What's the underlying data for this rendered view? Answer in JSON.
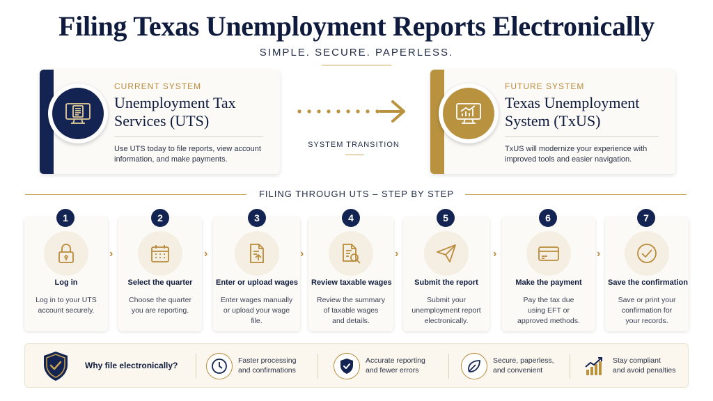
{
  "header": {
    "title": "Filing Texas Unemployment Reports Electronically",
    "subtitle": "SIMPLE. SECURE. PAPERLESS."
  },
  "current_system": {
    "eyebrow": "CURRENT SYSTEM",
    "name_line1": "Unemployment Tax",
    "name_line2": "Services (UTS)",
    "desc_line1": "Use UTS today to file reports, view account",
    "desc_line2": "information, and make payments.",
    "icon": "monitor-document-icon"
  },
  "transition": {
    "label": "SYSTEM TRANSITION"
  },
  "future_system": {
    "eyebrow": "FUTURE SYSTEM",
    "name_line1": "Texas Unemployment",
    "name_line2": "System (TxUS)",
    "desc_line1": "TxUS will modernize your experience with",
    "desc_line2": "improved tools and easier navigation.",
    "icon": "monitor-chart-icon"
  },
  "steps_section": {
    "title": "FILING THROUGH UTS – STEP BY STEP"
  },
  "steps": [
    {
      "num": "1",
      "title": "Log in",
      "desc": [
        "Log in to your UTS",
        "account securely."
      ],
      "icon": "lock-icon"
    },
    {
      "num": "2",
      "title": "Select the quarter",
      "desc": [
        "Choose the quarter",
        "you are reporting."
      ],
      "icon": "calendar-icon"
    },
    {
      "num": "3",
      "title": "Enter or upload wages",
      "desc": [
        "Enter wages manually",
        "or upload your wage",
        "file."
      ],
      "icon": "upload-document-icon"
    },
    {
      "num": "4",
      "title": "Review taxable wages",
      "desc": [
        "Review the summary",
        "of taxable wages",
        "and details."
      ],
      "icon": "search-document-icon"
    },
    {
      "num": "5",
      "title": "Submit the report",
      "desc": [
        "Submit your",
        "unemployment report",
        "electronically."
      ],
      "icon": "paper-plane-icon"
    },
    {
      "num": "6",
      "title": "Make the payment",
      "desc": [
        "Pay the tax due",
        "using EFT or",
        "approved methods."
      ],
      "icon": "credit-card-icon"
    },
    {
      "num": "7",
      "title": "Save the confirmation",
      "desc": [
        "Save or print your",
        "confirmation for",
        "your records."
      ],
      "icon": "check-circle-icon"
    }
  ],
  "why": {
    "label": "Why file electronically?",
    "benefits": [
      {
        "line1": "Faster processing",
        "line2": "and confirmations",
        "icon": "clock-icon"
      },
      {
        "line1": "Accurate reporting",
        "line2": "and fewer errors",
        "icon": "shield-check-icon"
      },
      {
        "line1": "Secure, paperless,",
        "line2": "and convenient",
        "icon": "leaf-icon"
      },
      {
        "line1": "Stay compliant",
        "line2": "and avoid penalties",
        "icon": "growth-chart-icon"
      }
    ]
  },
  "colors": {
    "navy": "#142452",
    "gold": "#b8923f",
    "card": "#fbfaf7"
  }
}
